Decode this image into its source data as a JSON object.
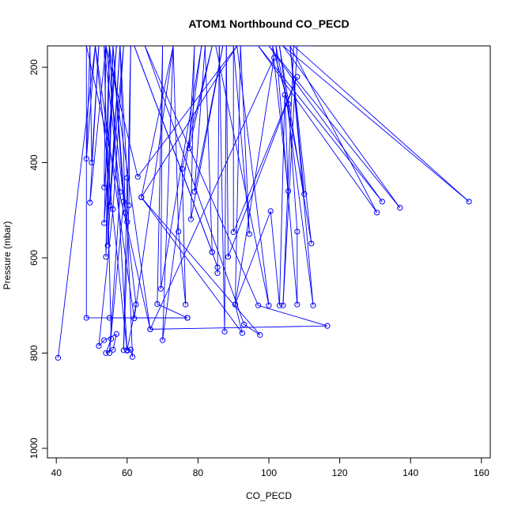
{
  "chart_data": {
    "type": "line",
    "title": "ATOM1 Northbound CO_PECD",
    "xlabel": "CO_PECD",
    "ylabel": "Pressure (mbar)",
    "xlim": [
      37.5,
      162.5
    ],
    "ylim": [
      1020,
      155
    ],
    "y_reversed": true,
    "x_ticks": [
      40,
      60,
      80,
      100,
      120,
      140,
      160
    ],
    "y_ticks": [
      200,
      400,
      600,
      800,
      1000
    ],
    "grid": false,
    "legend": "none",
    "colors": {
      "series": "#0000ff",
      "axis": "#000000",
      "background": "#ffffff"
    },
    "marker": "open-circle",
    "series": [
      {
        "points": [
          [
            40.5,
            810
          ],
          [
            51,
            155
          ],
          [
            48.5,
            392
          ],
          [
            49.5,
            155
          ],
          [
            50,
            400
          ],
          [
            52,
            155
          ],
          [
            49.5,
            484
          ],
          [
            54,
            155
          ],
          [
            53.5,
            452
          ],
          [
            57,
            155
          ],
          [
            53.5,
            527
          ],
          [
            55,
            155
          ],
          [
            54,
            598
          ],
          [
            56,
            155
          ],
          [
            54.5,
            574
          ],
          [
            58,
            155
          ],
          [
            55,
            490
          ],
          [
            59,
            155
          ],
          [
            56,
            498
          ],
          [
            52,
            785
          ],
          [
            53.5,
            773
          ],
          [
            57,
            760
          ],
          [
            56,
            793
          ],
          [
            54,
            800
          ],
          [
            55.5,
            770
          ],
          [
            53.5,
            155
          ],
          [
            58,
            462
          ],
          [
            55,
            800
          ],
          [
            59,
            482
          ],
          [
            56,
            155
          ],
          [
            59.5,
            506
          ],
          [
            58,
            155
          ],
          [
            60,
            432
          ],
          [
            59,
            794
          ],
          [
            60.5,
            490
          ],
          [
            61,
            155
          ],
          [
            60,
            525
          ],
          [
            61.5,
            808
          ],
          [
            61,
            793
          ],
          [
            60,
            794
          ],
          [
            62.5,
            698
          ],
          [
            54,
            155
          ],
          [
            63,
            430
          ],
          [
            91,
            155
          ],
          [
            64,
            473
          ],
          [
            73,
            155
          ],
          [
            62,
            727
          ],
          [
            51,
            155
          ],
          [
            60,
            795
          ],
          [
            55,
            155
          ],
          [
            66.5,
            750
          ],
          [
            48.5,
            155
          ],
          [
            48.5,
            726
          ],
          [
            77,
            726
          ],
          [
            55,
            726
          ],
          [
            77,
            726
          ],
          [
            68.5,
            697
          ],
          [
            70,
            155
          ],
          [
            69.5,
            665
          ],
          [
            81,
            155
          ],
          [
            70,
            773
          ],
          [
            73,
            155
          ],
          [
            74.5,
            545
          ],
          [
            76.5,
            698
          ],
          [
            75.5,
            413
          ],
          [
            84,
            155
          ],
          [
            77.5,
            370
          ],
          [
            79,
            155
          ],
          [
            78,
            519
          ],
          [
            87,
            155
          ],
          [
            79,
            461
          ],
          [
            82,
            155
          ],
          [
            84,
            588
          ],
          [
            62,
            155
          ],
          [
            84,
            588
          ],
          [
            85.5,
            620
          ],
          [
            85.5,
            632
          ],
          [
            86,
            155
          ],
          [
            87.5,
            755
          ],
          [
            88,
            155
          ],
          [
            88.5,
            598
          ],
          [
            108,
            220
          ],
          [
            90,
            546
          ],
          [
            90,
            155
          ],
          [
            94.5,
            550
          ],
          [
            92,
            155
          ],
          [
            90.5,
            698
          ],
          [
            92.5,
            758
          ],
          [
            64,
            473
          ],
          [
            97.5,
            762
          ],
          [
            93,
            740
          ],
          [
            65,
            155
          ],
          [
            97,
            700
          ],
          [
            116.5,
            743
          ],
          [
            66.5,
            750
          ],
          [
            101.5,
            180
          ],
          [
            90.5,
            698
          ],
          [
            100.5,
            502
          ],
          [
            103,
            700
          ],
          [
            104.5,
            258
          ],
          [
            105.5,
            460
          ],
          [
            101,
            155
          ],
          [
            105.5,
            277
          ],
          [
            108,
            545
          ],
          [
            108,
            698
          ],
          [
            102,
            155
          ],
          [
            110,
            466
          ],
          [
            106,
            155
          ],
          [
            112,
            570
          ],
          [
            103,
            155
          ],
          [
            112.5,
            700
          ],
          [
            106,
            155
          ],
          [
            130.5,
            505
          ],
          [
            97,
            155
          ],
          [
            132,
            482
          ],
          [
            100,
            155
          ],
          [
            137,
            495
          ],
          [
            104,
            155
          ],
          [
            156.5,
            482
          ],
          [
            107,
            155
          ],
          [
            104,
            700
          ],
          [
            108,
            155
          ],
          [
            112,
            155
          ],
          [
            85,
            155
          ],
          [
            100,
            700
          ],
          [
            91,
            155
          ]
        ]
      }
    ]
  }
}
